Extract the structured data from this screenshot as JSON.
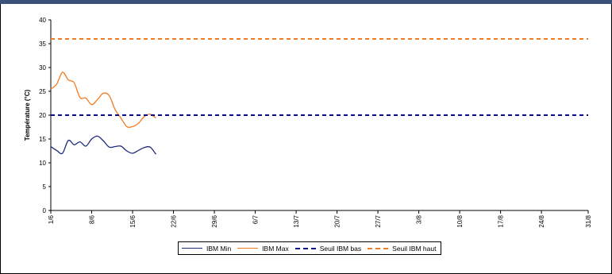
{
  "chart_data": {
    "type": "line",
    "ylabel": "Température (°C)",
    "ylim": [
      0,
      40
    ],
    "y_ticks": [
      "0",
      "5",
      "10",
      "15",
      "20",
      "25",
      "30",
      "35",
      "40"
    ],
    "x_ticks": [
      "1/6",
      "8/6",
      "15/6",
      "22/6",
      "29/6",
      "6/7",
      "13/7",
      "20/7",
      "27/7",
      "3/8",
      "10/8",
      "17/8",
      "24/8",
      "31/8"
    ],
    "x_start": "1/6",
    "x_end": "31/8",
    "grid": false,
    "legend_position": "bottom",
    "series": [
      {
        "name": "IBM Min",
        "color": "#1f2a7a",
        "style": "solid",
        "days": [
          0,
          1,
          2,
          3,
          4,
          5,
          6,
          7,
          8,
          9,
          10,
          11,
          12,
          13,
          14,
          15,
          16,
          17,
          18
        ],
        "values": [
          13.4,
          12.6,
          12.0,
          14.7,
          13.8,
          14.4,
          13.5,
          15.0,
          15.6,
          14.6,
          13.3,
          13.4,
          13.5,
          12.5,
          12.0,
          12.6,
          13.2,
          13.3,
          11.8
        ]
      },
      {
        "name": "IBM Max",
        "color": "#f47a1f",
        "style": "solid",
        "days": [
          0,
          1,
          2,
          3,
          4,
          5,
          6,
          7,
          8,
          9,
          10,
          11,
          12,
          13,
          14,
          15,
          16,
          17,
          18
        ],
        "values": [
          25.5,
          26.5,
          29.0,
          27.4,
          26.8,
          23.7,
          23.6,
          22.2,
          23.3,
          24.6,
          24.1,
          21.2,
          19.4,
          17.6,
          17.6,
          18.3,
          19.7,
          20.2,
          19.4
        ]
      },
      {
        "name": "Seuil IBM bas",
        "color": "#0a0a8a",
        "style": "dashed",
        "constant": 20
      },
      {
        "name": "Seuil IBM haut",
        "color": "#f47a1f",
        "style": "dashed",
        "constant": 36
      }
    ]
  }
}
